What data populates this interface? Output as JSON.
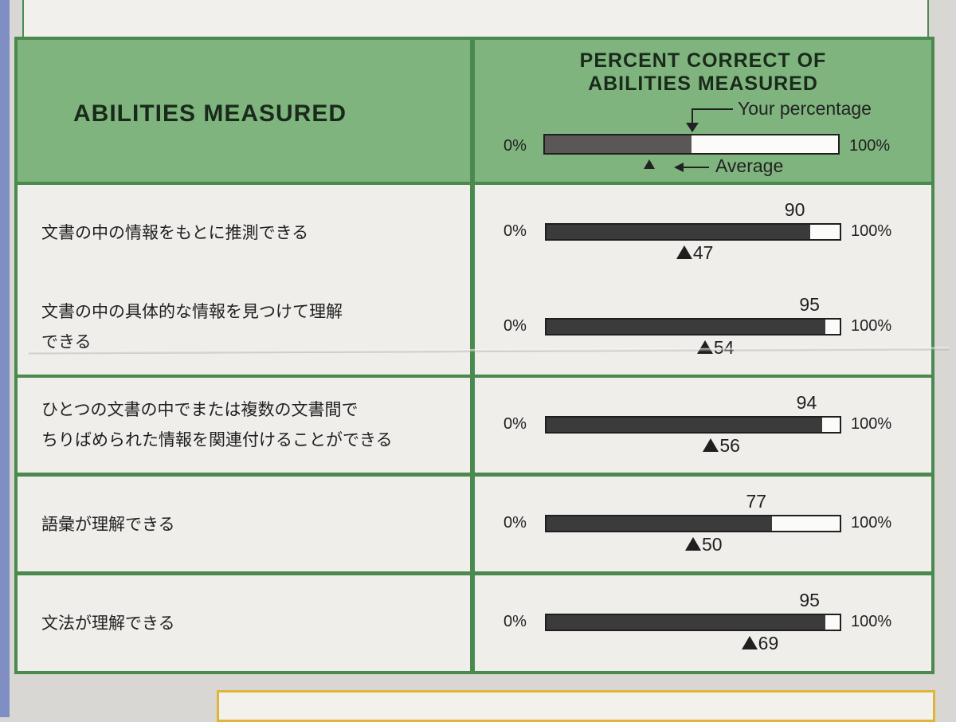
{
  "header": {
    "left_title": "ABILITIES MEASURED",
    "right_title_line1": "PERCENT CORRECT OF",
    "right_title_line2": "ABILITIES MEASURED",
    "legend_your_percentage": "Your percentage",
    "legend_average": "Average",
    "legend_min": "0%",
    "legend_max": "100%",
    "legend_example_fraction": 0.5
  },
  "axis": {
    "min_label": "0%",
    "max_label": "100%"
  },
  "rows": [
    {
      "label_lines": [
        "文書の中の情報をもとに推測できる"
      ],
      "score": 90,
      "score_label": "90",
      "average": 47,
      "average_label": "47"
    },
    {
      "label_lines": [
        "文書の中の具体的な情報を見つけて理解",
        "できる"
      ],
      "score": 95,
      "score_label": "95",
      "average": 54,
      "average_label": "54"
    },
    {
      "label_lines": [
        "ひとつの文書の中でまたは複数の文書間で",
        "ちりばめられた情報を関連付けることができる"
      ],
      "score": 94,
      "score_label": "94",
      "average": 56,
      "average_label": "56"
    },
    {
      "label_lines": [
        "語彙が理解できる"
      ],
      "score": 77,
      "score_label": "77",
      "average": 50,
      "average_label": "50"
    },
    {
      "label_lines": [
        "文法が理解できる"
      ],
      "score": 95,
      "score_label": "95",
      "average": 69,
      "average_label": "69"
    }
  ],
  "colors": {
    "table_border": "#4a8a4f",
    "header_fill": "#7fb47f",
    "bar_fill": "#3b3b3b"
  }
}
